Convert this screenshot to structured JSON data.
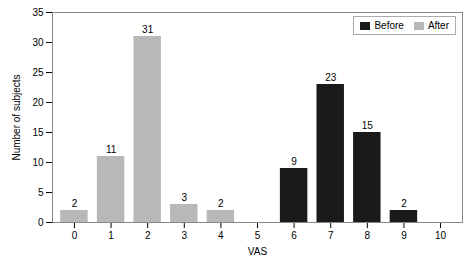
{
  "chart_data": {
    "type": "bar",
    "x": [
      0,
      1,
      2,
      3,
      4,
      5,
      6,
      7,
      8,
      9,
      10
    ],
    "series": [
      {
        "name": "Before",
        "color": "#1a1a1a",
        "values": [
          0,
          0,
          0,
          0,
          0,
          0,
          9,
          23,
          15,
          2,
          0
        ]
      },
      {
        "name": "After",
        "color": "#b8b8b8",
        "values": [
          2,
          11,
          31,
          3,
          2,
          0,
          0,
          0,
          0,
          0,
          0
        ]
      }
    ],
    "xlabel": "VAS",
    "ylabel": "Number of subjects",
    "xlim": [
      -0.6,
      10.6
    ],
    "xticks": [
      0,
      1,
      2,
      3,
      4,
      5,
      6,
      7,
      8,
      9,
      10
    ],
    "ylim": [
      0,
      35
    ],
    "yticks": [
      0,
      5,
      10,
      15,
      20,
      25,
      30,
      35
    ],
    "legend": "upper right",
    "data_labels": true,
    "grid": false
  }
}
